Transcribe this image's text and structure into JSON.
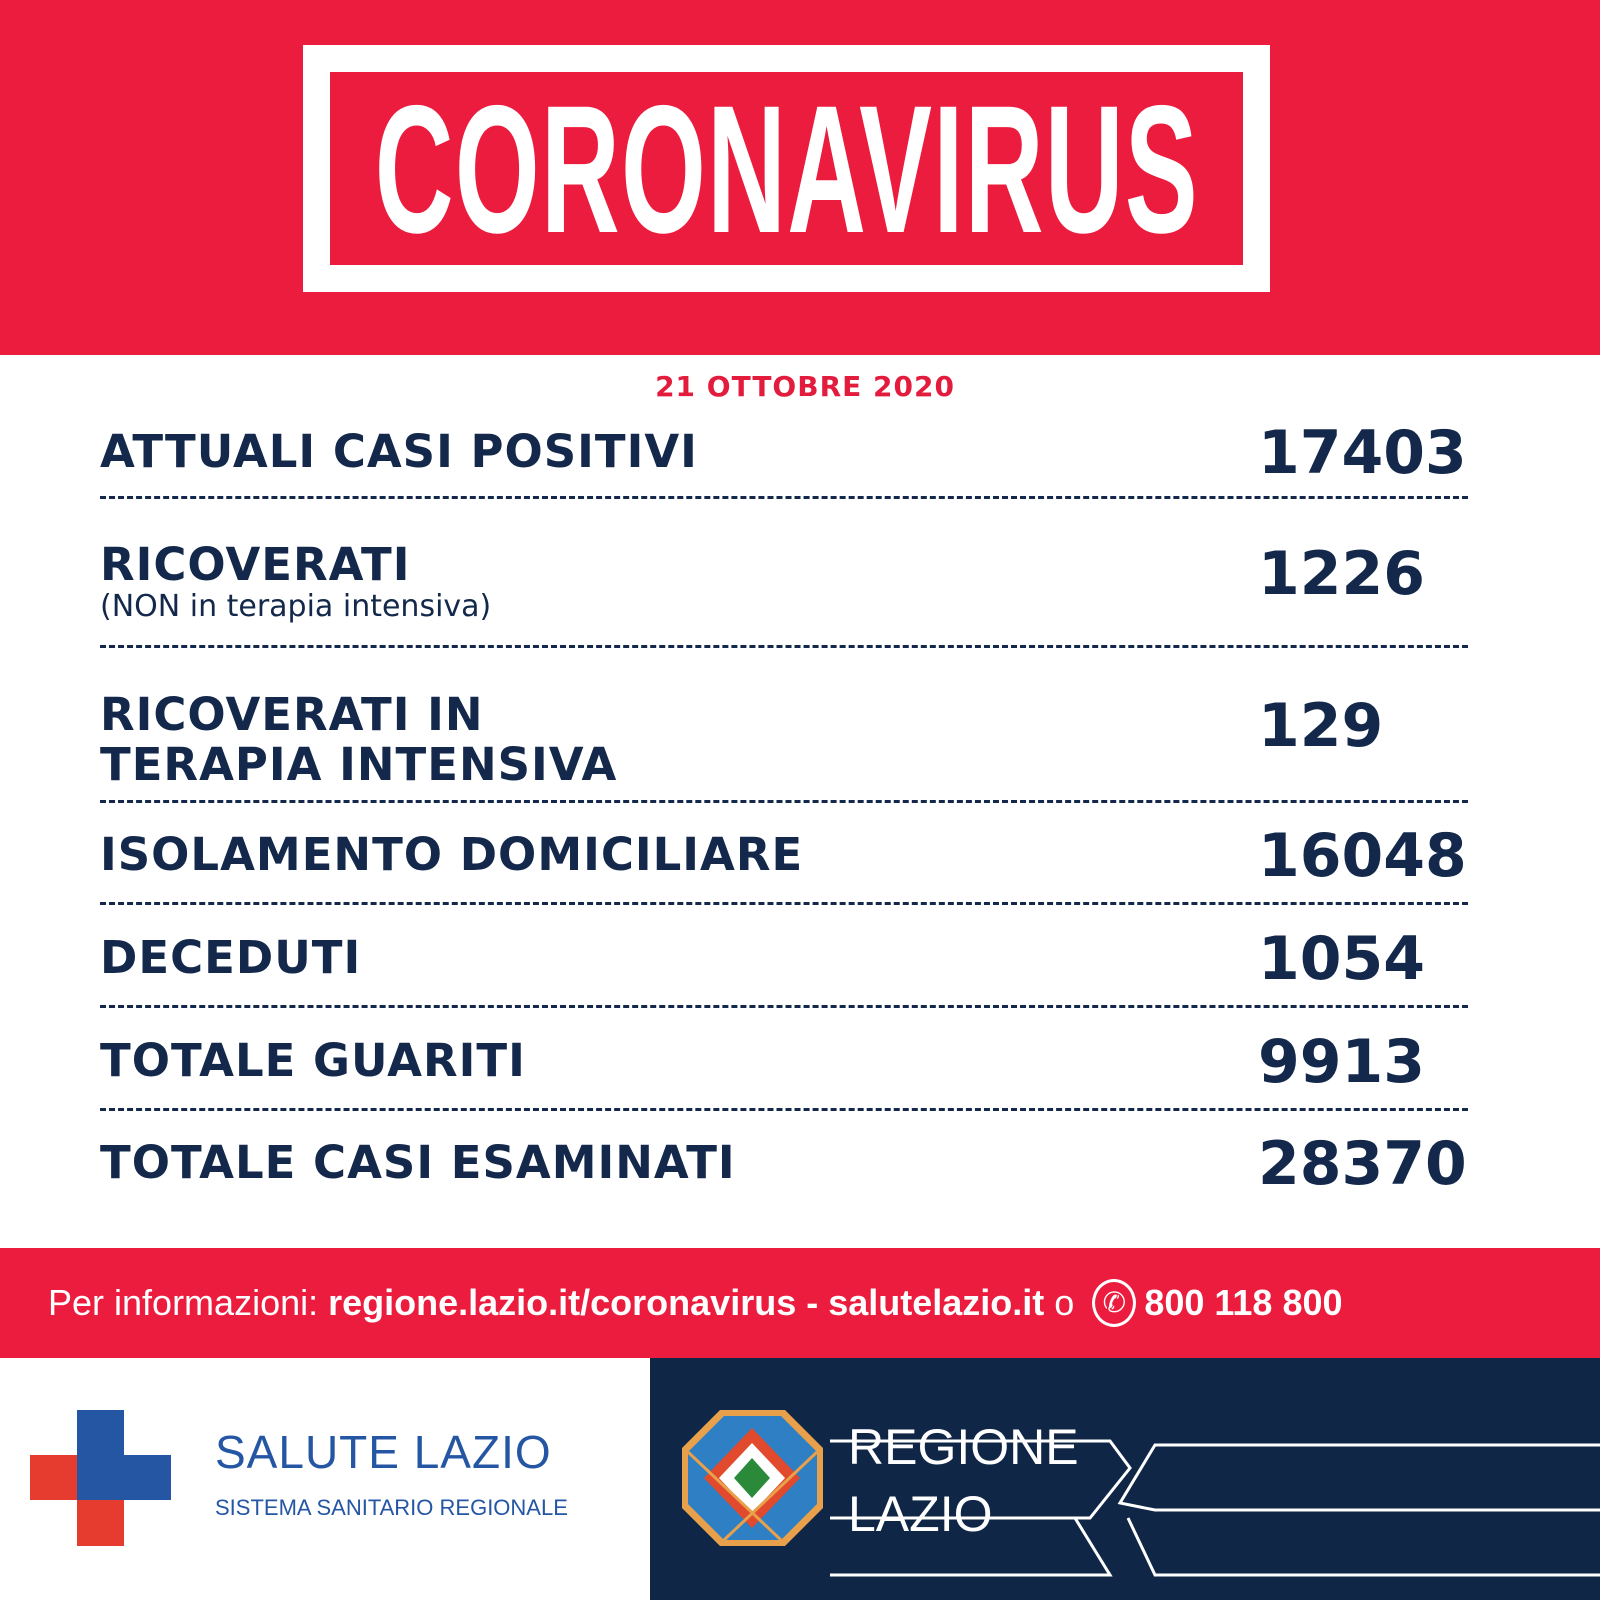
{
  "header": {
    "title": "CORONAVIRUS"
  },
  "date": "21 OTTOBRE 2020",
  "stats": [
    {
      "label": "ATTUALI CASI POSITIVI",
      "value": "17403"
    },
    {
      "label": "RICOVERATI",
      "sublabel": "(NON in terapia intensiva)",
      "value": "1226"
    },
    {
      "label": "RICOVERATI IN",
      "label2": "TERAPIA INTENSIVA",
      "value": "129"
    },
    {
      "label": "ISOLAMENTO DOMICILIARE",
      "value": "16048"
    },
    {
      "label": "DECEDUTI",
      "value": "1054"
    },
    {
      "label": "TOTALE GUARITI",
      "value": "9913"
    },
    {
      "label": "TOTALE CASI ESAMINATI",
      "value": "28370"
    }
  ],
  "info": {
    "prefix": "Per informazioni: ",
    "link1": "regione.lazio.it/coronavirus",
    "sep": " - ",
    "link2": "salutelazio.it",
    "or": " o ",
    "phone": "800 118 800"
  },
  "footer": {
    "salute_title": "SALUTE LAZIO",
    "salute_sub": "SISTEMA SANITARIO REGIONALE",
    "regione_1": "REGIONE",
    "regione_2": "LAZIO"
  },
  "colors": {
    "red": "#ec1c3e",
    "navy": "#13284a",
    "footer_navy": "#0f2647",
    "blue": "#2456a4",
    "cross_red": "#e63c2f"
  }
}
